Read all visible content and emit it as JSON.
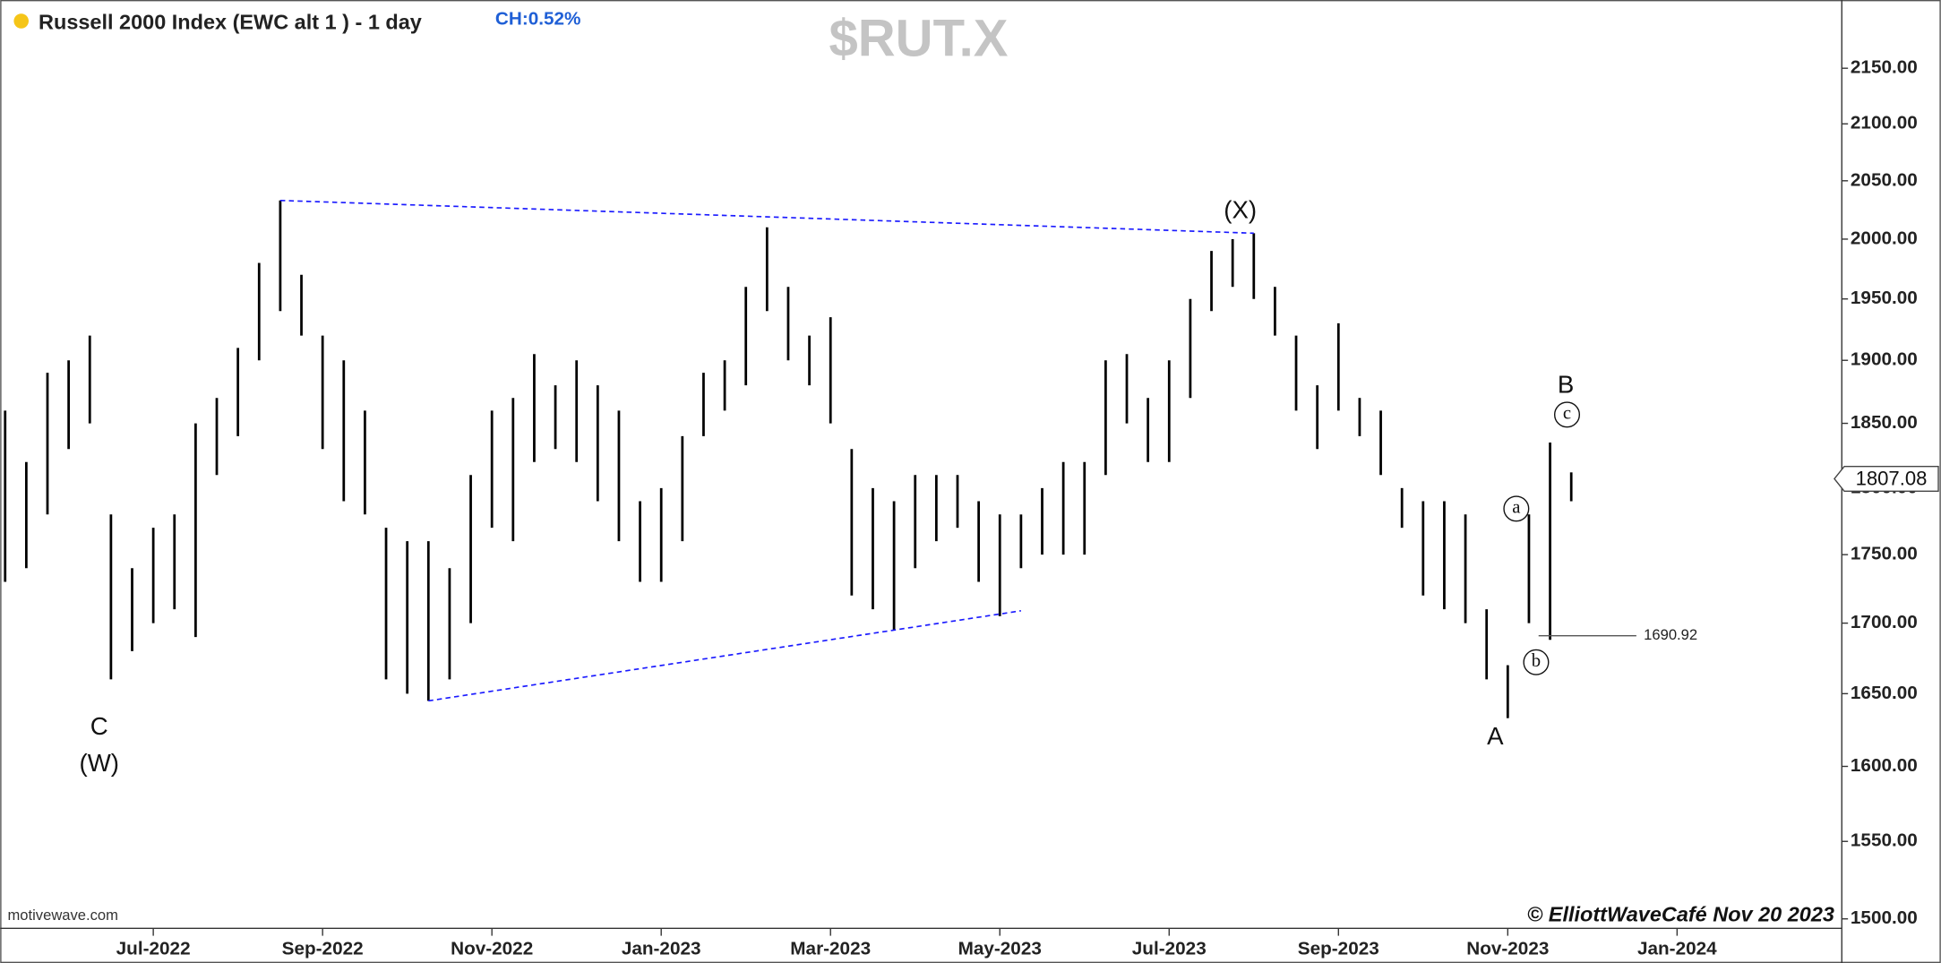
{
  "chart_data": {
    "type": "ohlc",
    "title": "Russell 2000 Index (EWC alt 1 ) - 1 day",
    "change": "CH:0.52%",
    "symbol": "$RUT.X",
    "categories": [
      null,
      null,
      null,
      null,
      null,
      null,
      null,
      "Jul-2022",
      null,
      null,
      null,
      null,
      null,
      null,
      null,
      "Sep-2022",
      null,
      null,
      null,
      null,
      null,
      null,
      null,
      "Nov-2022",
      null,
      null,
      null,
      null,
      null,
      null,
      null,
      "Jan-2023",
      null,
      null,
      null,
      null,
      null,
      null,
      null,
      "Mar-2023",
      null,
      null,
      null,
      null,
      null,
      null,
      null,
      "May-2023",
      null,
      null,
      null,
      null,
      null,
      null,
      null,
      "Jul-2023",
      null,
      null,
      null,
      null,
      null,
      null,
      null,
      "Sep-2023",
      null,
      null,
      null,
      null,
      null,
      null,
      null,
      "Nov-2023",
      null,
      null,
      null,
      null,
      null,
      null,
      null,
      "Jan-2024",
      null,
      null,
      null,
      null,
      null,
      null,
      null
    ],
    "high": [
      1860,
      1820,
      1890,
      1900,
      1920,
      1780,
      1740,
      1770,
      1780,
      1850,
      1870,
      1910,
      1980,
      2033,
      1970,
      1920,
      1900,
      1860,
      1770,
      1760,
      1760,
      1740,
      1810,
      1860,
      1870,
      1905,
      1880,
      1900,
      1880,
      1860,
      1790,
      1800,
      1840,
      1890,
      1900,
      1960,
      2010,
      1960,
      1920,
      1935,
      1830,
      1800,
      1790,
      1810,
      1810,
      1810,
      1790,
      1780,
      1780,
      1800,
      1820,
      1820,
      1900,
      1905,
      1870,
      1900,
      1950,
      1990,
      2000,
      2005,
      1960,
      1920,
      1880,
      1930,
      1870,
      1860,
      1800,
      1790,
      1790,
      1780,
      1710,
      1670,
      1780,
      1835,
      1812,
      null,
      null,
      null,
      null,
      null,
      null,
      null,
      null,
      null,
      null,
      null,
      null
    ],
    "low": [
      1730,
      1740,
      1780,
      1830,
      1850,
      1660,
      1680,
      1700,
      1710,
      1690,
      1810,
      1840,
      1900,
      1940,
      1920,
      1830,
      1790,
      1780,
      1660,
      1650,
      1645,
      1660,
      1700,
      1770,
      1760,
      1820,
      1830,
      1820,
      1790,
      1760,
      1730,
      1730,
      1760,
      1840,
      1860,
      1880,
      1940,
      1900,
      1880,
      1850,
      1720,
      1710,
      1695,
      1740,
      1760,
      1770,
      1730,
      1705,
      1740,
      1750,
      1750,
      1750,
      1810,
      1850,
      1820,
      1820,
      1870,
      1940,
      1960,
      1950,
      1920,
      1860,
      1830,
      1860,
      1840,
      1810,
      1770,
      1720,
      1710,
      1700,
      1660,
      1633,
      1700,
      1688,
      1790,
      null,
      null,
      null,
      null,
      null,
      null,
      null,
      null,
      null,
      null,
      null,
      null
    ],
    "color": "#000000",
    "trendline_color": "#1a1aff",
    "log_scale": true,
    "ylim": [
      1494,
      2213
    ],
    "yticks": [
      {
        "value": 1500,
        "label": "1500.00"
      },
      {
        "value": 1550,
        "label": "1550.00"
      },
      {
        "value": 1600,
        "label": "1600.00"
      },
      {
        "value": 1650,
        "label": "1650.00"
      },
      {
        "value": 1700,
        "label": "1700.00"
      },
      {
        "value": 1750,
        "label": "1750.00"
      },
      {
        "value": 1800,
        "label": "1800.00"
      },
      {
        "value": 1850,
        "label": "1850.00"
      },
      {
        "value": 1900,
        "label": "1900.00"
      },
      {
        "value": 1950,
        "label": "1950.00"
      },
      {
        "value": 2000,
        "label": "2000.00"
      },
      {
        "value": 2050,
        "label": "2050.00"
      },
      {
        "value": 2100,
        "label": "2100.00"
      },
      {
        "value": 2150,
        "label": "2150.00"
      }
    ],
    "last_price": 1807.08,
    "price_marker": 1690.92,
    "wave_labels": [
      "C",
      "(W)",
      "(X)",
      "B",
      "c",
      "a",
      "b",
      "A"
    ],
    "source": "motivewave.com",
    "copyright": "© ElliottWaveCafé Nov 20 2023"
  }
}
